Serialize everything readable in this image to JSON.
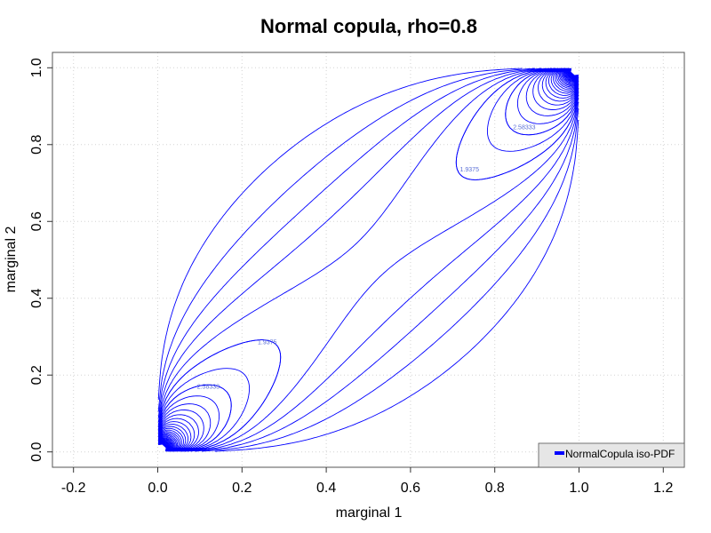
{
  "chart_data": {
    "type": "line",
    "title": "Normal copula, rho=0.8",
    "xlabel": "marginal 1",
    "ylabel": "marginal 2",
    "xlim": [
      -0.25,
      1.25
    ],
    "ylim": [
      -0.04,
      1.04
    ],
    "x_ticks": [
      "-0.2",
      "0.0",
      "0.2",
      "0.4",
      "0.6",
      "0.8",
      "1.0",
      "1.2"
    ],
    "x_tick_values": [
      -0.2,
      0.0,
      0.2,
      0.4,
      0.6,
      0.8,
      1.0,
      1.2
    ],
    "y_ticks": [
      "0.0",
      "0.2",
      "0.4",
      "0.6",
      "0.8",
      "1.0"
    ],
    "y_tick_values": [
      0.0,
      0.2,
      0.4,
      0.6,
      0.8,
      1.0
    ],
    "grid": true,
    "legend": {
      "entries": [
        "NormalCopula iso-PDF"
      ],
      "placement": "bottom-right"
    },
    "series": [
      {
        "name": "NormalCopula iso-PDF",
        "color": "#0000ff",
        "rho": 0.8,
        "contour_labels": [
          {
            "text": "1.9375",
            "x": 0.74,
            "y": 0.73
          },
          {
            "text": "2.58333",
            "x": 0.87,
            "y": 0.84
          },
          {
            "text": "1.9375",
            "x": 0.26,
            "y": 0.28
          },
          {
            "text": "2.58333",
            "x": 0.12,
            "y": 0.165
          }
        ]
      }
    ]
  }
}
